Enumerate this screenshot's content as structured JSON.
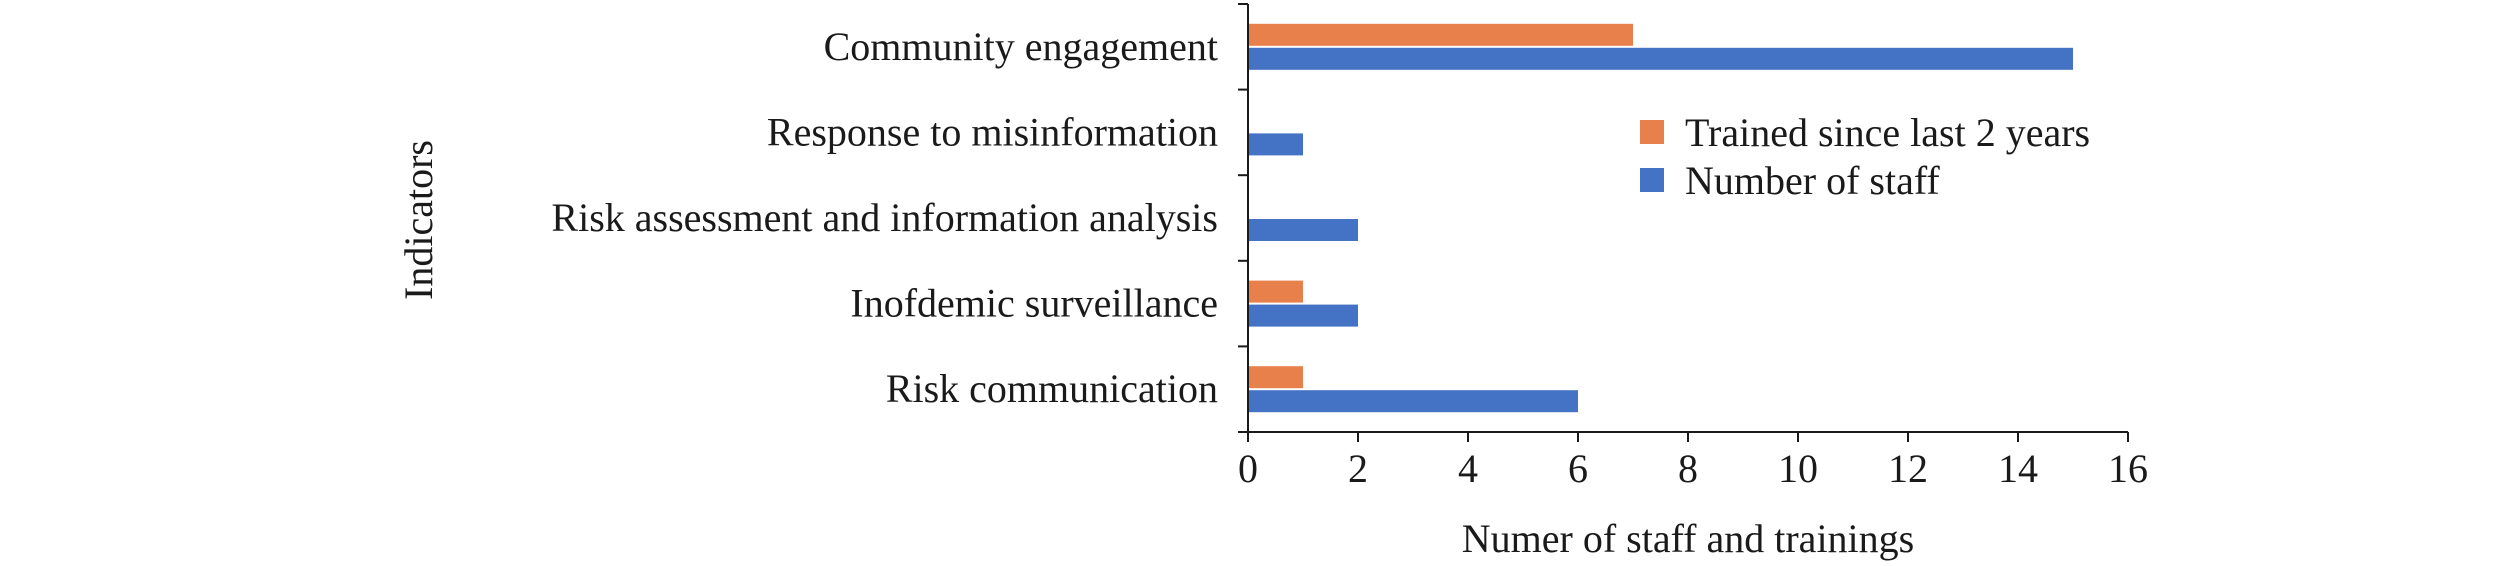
{
  "chart_data": {
    "type": "bar",
    "orientation": "horizontal",
    "title": "",
    "xlabel": "Numer of staff and trainings",
    "ylabel": "Indicators",
    "categories": [
      "Community engagement",
      "Response to misinformation",
      "Risk assessment and information analysis",
      "Inofdemic surveillance",
      "Risk communication"
    ],
    "series": [
      {
        "name": "Trained since last 2 years",
        "color": "#E8804B",
        "values": [
          7,
          0,
          0,
          1,
          1
        ]
      },
      {
        "name": "Number of staff",
        "color": "#4472C4",
        "values": [
          15,
          1,
          2,
          2,
          6
        ]
      }
    ],
    "xlim": [
      0,
      16
    ],
    "xticks": [
      "0",
      "2",
      "4",
      "6",
      "8",
      "10",
      "12",
      "14",
      "16"
    ],
    "grid": false,
    "legend_position": "top-right"
  }
}
